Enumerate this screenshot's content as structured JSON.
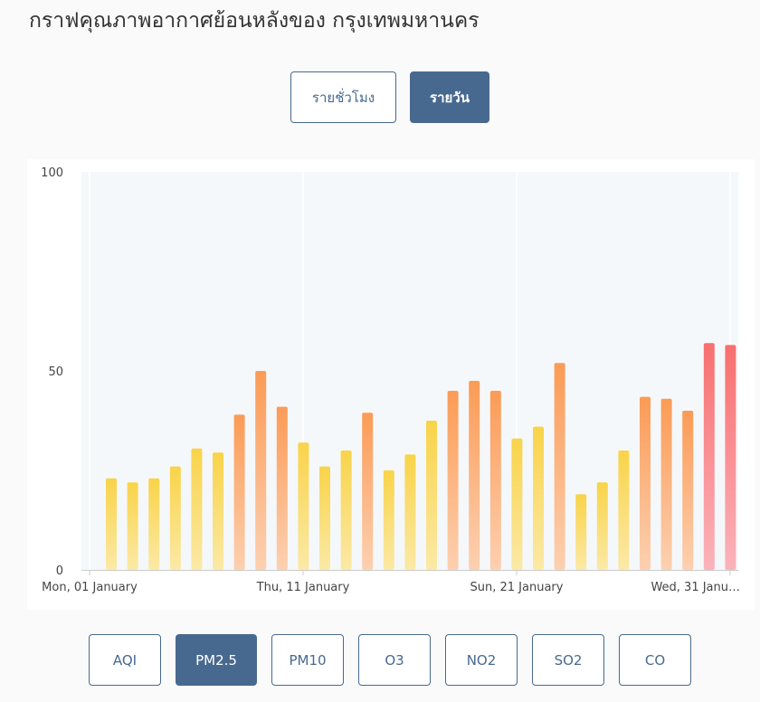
{
  "page": {
    "title": "กราฟคุณภาพอากาศย้อนหลังของ กรุงเทพมหานคร"
  },
  "period_toggle": {
    "hourly_label": "รายชั่วโมง",
    "daily_label": "รายวัน",
    "selected": "daily"
  },
  "pollutant_tabs": {
    "items": [
      {
        "label": "AQI"
      },
      {
        "label": "PM2.5"
      },
      {
        "label": "PM10"
      },
      {
        "label": "O3"
      },
      {
        "label": "NO2"
      },
      {
        "label": "SO2"
      },
      {
        "label": "CO"
      }
    ],
    "selected": "PM2.5"
  },
  "colors": {
    "accent": "#48698f",
    "bar_low": "#f9d349",
    "bar_mid": "#fb9b56",
    "bar_high": "#f86f6f"
  },
  "chart_data": {
    "type": "bar",
    "title": "",
    "xlabel": "",
    "ylabel": "",
    "ylim": [
      0,
      100
    ],
    "y_ticks": [
      0,
      50,
      100
    ],
    "x_tick_labels": [
      {
        "label": "Mon, 01 January",
        "index": 0
      },
      {
        "label": "Thu, 11 January",
        "index": 10
      },
      {
        "label": "Sun, 21 January",
        "index": 20
      },
      {
        "label": "Wed, 31 Janu…",
        "index": 30
      }
    ],
    "grid": true,
    "categories": [
      "2024-01-01",
      "2024-01-02",
      "2024-01-03",
      "2024-01-04",
      "2024-01-05",
      "2024-01-06",
      "2024-01-07",
      "2024-01-08",
      "2024-01-09",
      "2024-01-10",
      "2024-01-11",
      "2024-01-12",
      "2024-01-13",
      "2024-01-14",
      "2024-01-15",
      "2024-01-16",
      "2024-01-17",
      "2024-01-18",
      "2024-01-19",
      "2024-01-20",
      "2024-01-21",
      "2024-01-22",
      "2024-01-23",
      "2024-01-24",
      "2024-01-25",
      "2024-01-26",
      "2024-01-27",
      "2024-01-28",
      "2024-01-29",
      "2024-01-30",
      "2024-01-31"
    ],
    "values": [
      23,
      22,
      23,
      26,
      30.5,
      29.5,
      39,
      50,
      41,
      32,
      26,
      30,
      39.5,
      25,
      29,
      37.5,
      45,
      47.5,
      45,
      33,
      36,
      52,
      19,
      22,
      30,
      43.5,
      43,
      40,
      57,
      56.5,
      0
    ],
    "color_thresholds": [
      {
        "max": 37.5,
        "color": "low"
      },
      {
        "max": 55,
        "color": "mid"
      },
      {
        "max": 100,
        "color": "high"
      }
    ]
  }
}
